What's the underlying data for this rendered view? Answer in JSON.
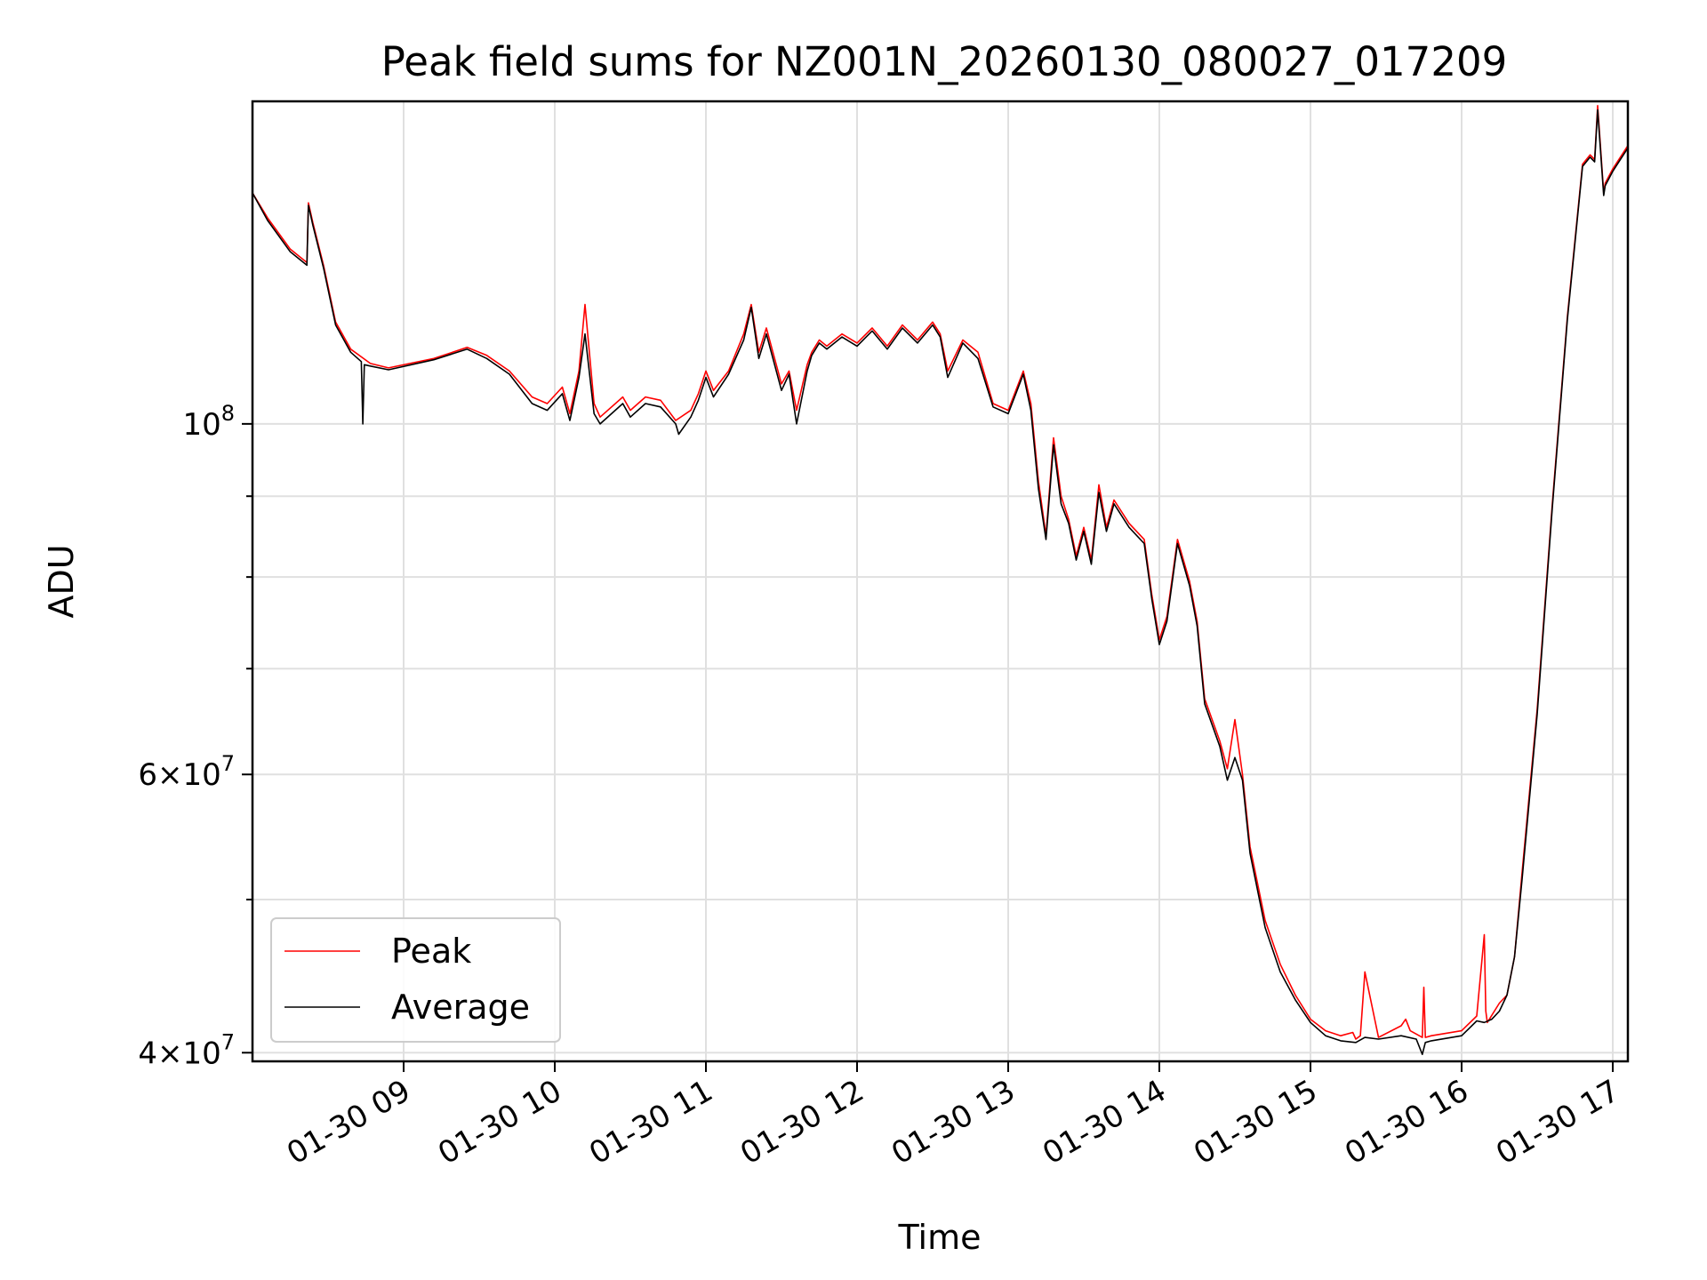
{
  "chart_data": {
    "type": "line",
    "title": "Peak field sums for NZ001N_20260130_080027_017209",
    "xlabel": "Time",
    "ylabel": "ADU",
    "yscale": "log",
    "ylim": [
      39500000,
      160000000
    ],
    "xlim_hours": [
      8.0,
      17.1
    ],
    "grid": true,
    "legend_placement": "lower-left",
    "x_ticks": [
      {
        "hour": 9,
        "label": "01-30 09"
      },
      {
        "hour": 10,
        "label": "01-30 10"
      },
      {
        "hour": 11,
        "label": "01-30 11"
      },
      {
        "hour": 12,
        "label": "01-30 12"
      },
      {
        "hour": 13,
        "label": "01-30 13"
      },
      {
        "hour": 14,
        "label": "01-30 14"
      },
      {
        "hour": 15,
        "label": "01-30 15"
      },
      {
        "hour": 16,
        "label": "01-30 16"
      },
      {
        "hour": 17,
        "label": "01-30 17"
      }
    ],
    "y_ticks": [
      {
        "value": 100000000,
        "base": "10",
        "exp": "8"
      },
      {
        "value": 60000000,
        "base": "6×10",
        "exp": "7"
      },
      {
        "value": 40000000,
        "base": "4×10",
        "exp": "7"
      }
    ],
    "y_minor_ticks": [
      50000000,
      70000000,
      80000000,
      90000000
    ],
    "series": [
      {
        "name": "Peak",
        "color": "#ff0000",
        "x": [
          8.0,
          8.1,
          8.25,
          8.36,
          8.37,
          8.4,
          8.47,
          8.55,
          8.65,
          8.78,
          8.9,
          9.2,
          9.42,
          9.55,
          9.7,
          9.85,
          9.95,
          10.05,
          10.1,
          10.16,
          10.2,
          10.26,
          10.3,
          10.45,
          10.5,
          10.6,
          10.7,
          10.8,
          10.9,
          10.95,
          11.0,
          11.05,
          11.15,
          11.25,
          11.3,
          11.35,
          11.4,
          11.5,
          11.55,
          11.6,
          11.67,
          11.7,
          11.75,
          11.8,
          11.9,
          12.0,
          12.1,
          12.2,
          12.3,
          12.4,
          12.5,
          12.55,
          12.6,
          12.7,
          12.8,
          12.9,
          13.0,
          13.1,
          13.15,
          13.2,
          13.25,
          13.3,
          13.35,
          13.4,
          13.45,
          13.5,
          13.55,
          13.6,
          13.65,
          13.7,
          13.8,
          13.9,
          13.95,
          14.0,
          14.05,
          14.12,
          14.2,
          14.25,
          14.3,
          14.4,
          14.45,
          14.5,
          14.55,
          14.6,
          14.7,
          14.8,
          14.9,
          15.0,
          15.1,
          15.2,
          15.28,
          15.3,
          15.33,
          15.36,
          15.45,
          15.6,
          15.63,
          15.66,
          15.74,
          15.75,
          15.76,
          15.8,
          16.0,
          16.1,
          16.15,
          16.16,
          16.17,
          16.25,
          16.3,
          16.35,
          16.4,
          16.5,
          16.6,
          16.7,
          16.8,
          16.85,
          16.88,
          16.9,
          16.94,
          16.95,
          17.0,
          17.1
        ],
        "values": [
          140000000,
          135000000,
          129000000,
          126500000,
          138000000,
          134000000,
          126000000,
          116000000,
          111500000,
          109200000,
          108500000,
          110000000,
          111800000,
          110500000,
          108000000,
          104000000,
          103000000,
          105500000,
          101500000,
          108000000,
          119000000,
          103000000,
          101000000,
          104000000,
          102000000,
          104000000,
          103500000,
          100500000,
          102000000,
          104500000,
          108000000,
          105000000,
          108000000,
          114000000,
          119000000,
          111000000,
          115000000,
          106000000,
          108000000,
          102000000,
          109000000,
          111000000,
          113000000,
          112000000,
          114000000,
          112500000,
          115000000,
          112000000,
          115500000,
          113000000,
          116000000,
          114000000,
          108000000,
          113000000,
          111000000,
          103000000,
          102000000,
          108000000,
          103000000,
          92000000,
          85000000,
          98000000,
          90000000,
          87000000,
          82500000,
          86000000,
          82000000,
          91500000,
          86000000,
          89500000,
          86500000,
          84500000,
          78000000,
          73000000,
          75500000,
          84500000,
          79500000,
          75000000,
          67000000,
          63000000,
          60500000,
          65000000,
          60000000,
          54000000,
          48500000,
          45500000,
          43500000,
          42000000,
          41300000,
          41000000,
          41200000,
          40800000,
          41000000,
          45000000,
          40900000,
          41600000,
          42000000,
          41300000,
          40900000,
          44000000,
          40900000,
          41000000,
          41300000,
          42200000,
          47500000,
          42500000,
          41800000,
          43000000,
          43500000,
          46000000,
          52000000,
          66000000,
          89000000,
          117000000,
          146000000,
          148000000,
          147000000,
          159000000,
          140000000,
          142000000,
          145000000,
          150000000
        ]
      },
      {
        "name": "Average",
        "color": "#000000",
        "x": [
          8.0,
          8.1,
          8.25,
          8.36,
          8.37,
          8.4,
          8.47,
          8.55,
          8.65,
          8.72,
          8.73,
          8.74,
          8.78,
          8.9,
          9.2,
          9.42,
          9.55,
          9.7,
          9.85,
          9.95,
          10.05,
          10.1,
          10.16,
          10.2,
          10.26,
          10.3,
          10.45,
          10.5,
          10.6,
          10.7,
          10.8,
          10.82,
          10.9,
          10.95,
          11.0,
          11.05,
          11.15,
          11.25,
          11.3,
          11.35,
          11.4,
          11.5,
          11.55,
          11.6,
          11.67,
          11.7,
          11.75,
          11.8,
          11.9,
          12.0,
          12.1,
          12.2,
          12.3,
          12.4,
          12.5,
          12.55,
          12.6,
          12.7,
          12.8,
          12.9,
          13.0,
          13.1,
          13.15,
          13.2,
          13.25,
          13.3,
          13.35,
          13.4,
          13.45,
          13.5,
          13.55,
          13.6,
          13.65,
          13.7,
          13.8,
          13.9,
          13.95,
          14.0,
          14.05,
          14.12,
          14.2,
          14.25,
          14.3,
          14.4,
          14.45,
          14.5,
          14.55,
          14.6,
          14.7,
          14.8,
          14.9,
          15.0,
          15.1,
          15.2,
          15.3,
          15.36,
          15.45,
          15.6,
          15.7,
          15.74,
          15.76,
          15.8,
          16.0,
          16.1,
          16.15,
          16.2,
          16.25,
          16.3,
          16.35,
          16.4,
          16.5,
          16.6,
          16.7,
          16.8,
          16.85,
          16.88,
          16.9,
          16.94,
          16.95,
          17.0,
          17.1
        ],
        "values": [
          140000000,
          134500000,
          128500000,
          126000000,
          137500000,
          133500000,
          125500000,
          115500000,
          111000000,
          109500000,
          100000000,
          109000000,
          108800000,
          108200000,
          109800000,
          111500000,
          110000000,
          107500000,
          103000000,
          102000000,
          104500000,
          100500000,
          107000000,
          114000000,
          101500000,
          100000000,
          103000000,
          101000000,
          103000000,
          102500000,
          100000000,
          98500000,
          101000000,
          103500000,
          107000000,
          104000000,
          107500000,
          113000000,
          118500000,
          110000000,
          114000000,
          105000000,
          107500000,
          100000000,
          108000000,
          110500000,
          112500000,
          111500000,
          113500000,
          112000000,
          114500000,
          111500000,
          115000000,
          112500000,
          115500000,
          113500000,
          107000000,
          112500000,
          110000000,
          102500000,
          101500000,
          107500000,
          102000000,
          91000000,
          84500000,
          97000000,
          89000000,
          86500000,
          82000000,
          85500000,
          81500000,
          90500000,
          85500000,
          89000000,
          86000000,
          84000000,
          77500000,
          72500000,
          75000000,
          84000000,
          79000000,
          74500000,
          66500000,
          62500000,
          59500000,
          61500000,
          59500000,
          53500000,
          48000000,
          45000000,
          43200000,
          41800000,
          41000000,
          40700000,
          40600000,
          40900000,
          40800000,
          41000000,
          40800000,
          39900000,
          40600000,
          40700000,
          41000000,
          41900000,
          41800000,
          42000000,
          42500000,
          43500000,
          46000000,
          51500000,
          65500000,
          88500000,
          116500000,
          145500000,
          147500000,
          146500000,
          158000000,
          139500000,
          141500000,
          144500000,
          149500000
        ]
      }
    ]
  }
}
